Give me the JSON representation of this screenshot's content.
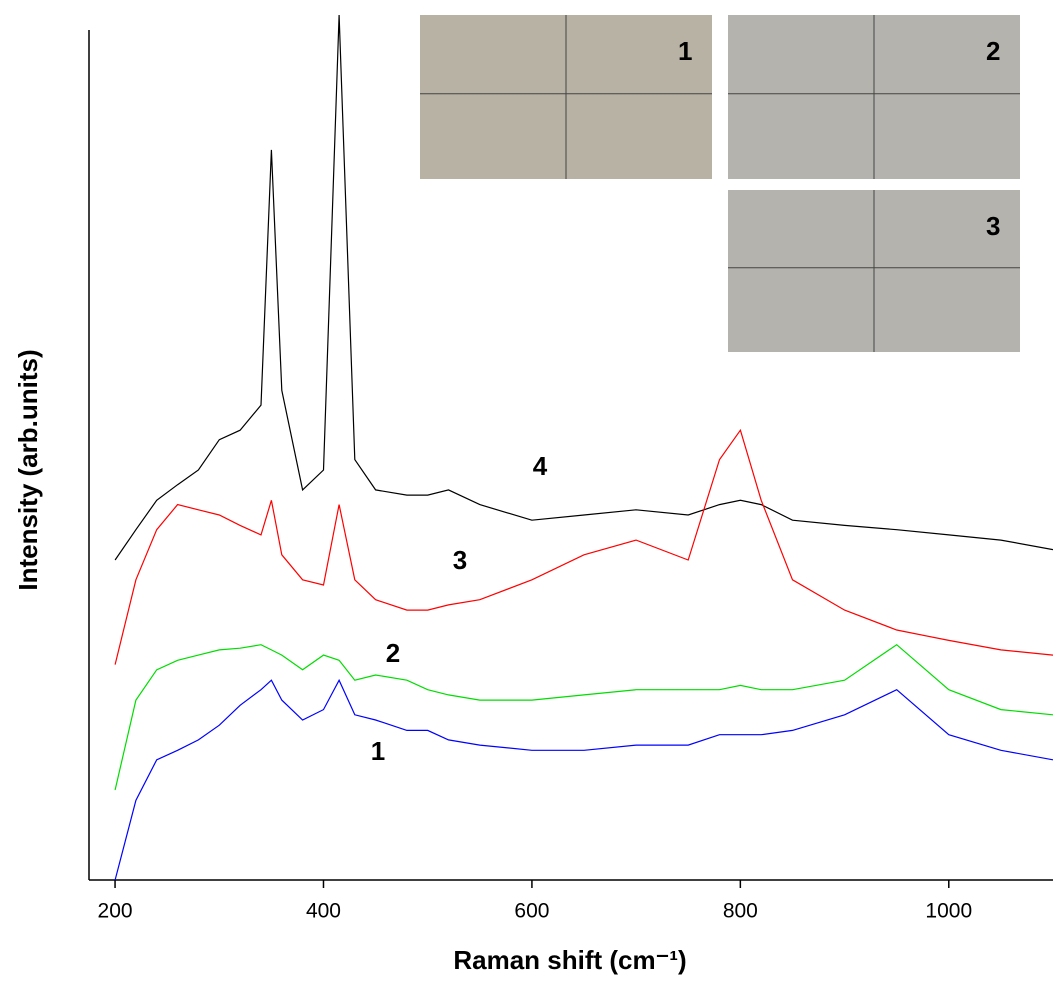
{
  "chart_data": {
    "type": "line",
    "xlabel": "Raman shift (cm⁻¹)",
    "ylabel": "Intensity (arb.units)",
    "xlim": [
      175,
      1100
    ],
    "ylim": [
      0,
      100
    ],
    "xticks": [
      200,
      400,
      600,
      800,
      1000
    ],
    "x": [
      200,
      220,
      240,
      260,
      280,
      300,
      320,
      340,
      350,
      360,
      380,
      400,
      415,
      430,
      450,
      480,
      500,
      520,
      550,
      600,
      650,
      700,
      750,
      780,
      800,
      820,
      850,
      900,
      950,
      1000,
      1050,
      1100
    ],
    "series": [
      {
        "name": "4",
        "color": "#000000",
        "values": [
          37,
          40.5,
          43.9,
          45.7,
          47.4,
          50.9,
          52,
          54.9,
          84.4,
          56.6,
          45.1,
          47.4,
          100,
          48.6,
          45.1,
          44.5,
          44.5,
          45.1,
          43.4,
          41.6,
          42.2,
          42.8,
          42.2,
          43.4,
          43.9,
          43.4,
          41.6,
          41,
          40.5,
          39.9,
          39.3,
          38.2
        ]
      },
      {
        "name": "3",
        "color": "#ff0000",
        "values": [
          24.9,
          34.7,
          40.5,
          43.4,
          42.8,
          42.2,
          41,
          39.9,
          43.9,
          37.6,
          34.7,
          34.1,
          43.4,
          34.7,
          32.4,
          31.2,
          31.2,
          31.8,
          32.4,
          34.7,
          37.6,
          39.3,
          37,
          48.6,
          52,
          43.9,
          34.7,
          31.2,
          28.9,
          27.7,
          26.6,
          26
        ]
      },
      {
        "name": "2",
        "color": "#00dd00",
        "values": [
          10.4,
          20.8,
          24.3,
          25.4,
          26,
          26.6,
          26.8,
          27.2,
          26.6,
          26,
          24.3,
          26,
          25.4,
          23.1,
          23.7,
          23.1,
          22,
          21.4,
          20.8,
          20.8,
          21.4,
          22,
          22,
          22,
          22.5,
          22,
          22,
          23.1,
          27.2,
          22,
          19.7,
          19.1
        ]
      },
      {
        "name": "1",
        "color": "#0000ff",
        "values": [
          0,
          9.2,
          13.9,
          15,
          16.2,
          17.9,
          20.2,
          22,
          23.1,
          20.8,
          18.5,
          19.7,
          23.1,
          19.1,
          18.5,
          17.3,
          17.3,
          16.2,
          15.6,
          15,
          15,
          15.6,
          15.6,
          16.8,
          16.8,
          16.8,
          17.3,
          19.1,
          22,
          16.8,
          15,
          13.9
        ]
      }
    ],
    "insets": [
      "1",
      "2",
      "3"
    ]
  }
}
